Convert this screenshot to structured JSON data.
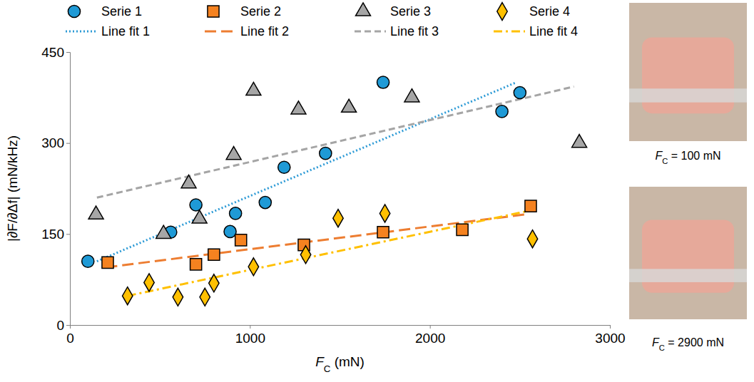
{
  "chart_data": {
    "type": "scatter",
    "x_label": "FC (mN)",
    "y_label": "|∂F/∂Δf|  (mN/kHz)",
    "xlim": [
      0,
      3000
    ],
    "xticks": [
      0,
      1000,
      2000,
      3000
    ],
    "ylim": [
      0,
      450
    ],
    "yticks": [
      0,
      150,
      300,
      450
    ],
    "legend": "top",
    "series": [
      {
        "name": "Serie 1",
        "type": "scatter",
        "marker": "circle",
        "color": "#1f9ad6",
        "x": [
          100,
          560,
          700,
          890,
          920,
          1085,
          1190,
          1420,
          1740,
          2400,
          2500
        ],
        "values": [
          105,
          153,
          198,
          154,
          184,
          202,
          260,
          283,
          400,
          352,
          383
        ]
      },
      {
        "name": "Serie 2",
        "type": "scatter",
        "marker": "square",
        "color": "#f58220",
        "x": [
          210,
          700,
          800,
          950,
          1300,
          1740,
          2180,
          2560
        ],
        "values": [
          103,
          100,
          116,
          140,
          132,
          153,
          157,
          196
        ]
      },
      {
        "name": "Serie 3",
        "type": "scatter",
        "marker": "triangle",
        "color": "#a6a6a6",
        "x": [
          145,
          520,
          660,
          720,
          910,
          1020,
          1270,
          1550,
          1900,
          2830
        ],
        "values": [
          182,
          150,
          233,
          175,
          280,
          386,
          355,
          358,
          375,
          300
        ]
      },
      {
        "name": "Serie 4",
        "type": "scatter",
        "marker": "diamond",
        "color": "#ffc000",
        "x": [
          320,
          440,
          600,
          750,
          800,
          1020,
          1310,
          1490,
          1750,
          2570
        ],
        "values": [
          48,
          70,
          46,
          46,
          69,
          96,
          116,
          176,
          184,
          142
        ]
      },
      {
        "name": "Line fit 1",
        "type": "line",
        "line_style": "dotted",
        "color": "#2e9bd6",
        "x": [
          150,
          2480
        ],
        "values": [
          105,
          400
        ]
      },
      {
        "name": "Line fit 2",
        "type": "line",
        "line_style": "longdash",
        "color": "#ed7d31",
        "x": [
          200,
          2550
        ],
        "values": [
          95,
          183
        ]
      },
      {
        "name": "Line fit 3",
        "type": "line",
        "line_style": "dashed",
        "color": "#a5a5a5",
        "x": [
          150,
          2800
        ],
        "values": [
          210,
          393
        ]
      },
      {
        "name": "Line fit 4",
        "type": "line",
        "line_style": "dashdot",
        "color": "#ffc000",
        "x": [
          320,
          2530
        ],
        "values": [
          48,
          187
        ]
      }
    ],
    "annotations": [
      {
        "text": "FC = 100 mN"
      },
      {
        "text": "FC = 2900 mN"
      }
    ]
  }
}
